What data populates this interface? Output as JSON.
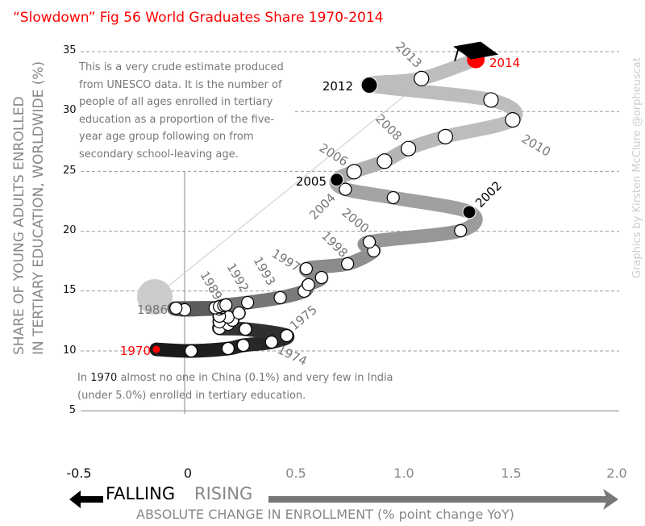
{
  "chart_data": {
    "type": "line",
    "title": "“Slowdown” Fig 56 World Graduates Share 1970-2014",
    "xlabel": "ABSOLUTE CHANGE IN ENROLLMENT (% point change YoY)",
    "ylabel": [
      "SHARE OF YOUNG ADULTS ENROLLED",
      "IN TERTIARY EDUCATION,  WORLDWIDE (%)"
    ],
    "xlim": [
      -0.5,
      2.0
    ],
    "ylim": [
      5,
      35
    ],
    "x_ticks": [
      "-0.5",
      "0",
      "0.5",
      "1.0",
      "1.5",
      "2.0"
    ],
    "y_ticks": [
      "35",
      "30",
      "25",
      "20",
      "15",
      "10",
      "5"
    ],
    "grid": "horizontal dashed",
    "direction_labels": {
      "falling": "FALLING",
      "rising": "RISING"
    },
    "points": [
      {
        "year": 1970,
        "x": -0.13,
        "y": 10.13
      },
      {
        "year": 1971,
        "x": 0.03,
        "y": 10.0
      },
      {
        "year": 1972,
        "x": 0.2,
        "y": 10.2
      },
      {
        "year": 1973,
        "x": 0.27,
        "y": 10.47
      },
      {
        "year": 1974,
        "x": 0.4,
        "y": 10.74
      },
      {
        "year": 1975,
        "x": 0.47,
        "y": 11.28
      },
      {
        "year": 1976,
        "x": 0.28,
        "y": 11.82
      },
      {
        "year": 1977,
        "x": 0.16,
        "y": 11.89
      },
      {
        "year": 1978,
        "x": 0.2,
        "y": 12.22
      },
      {
        "year": 1979,
        "x": 0.16,
        "y": 12.43
      },
      {
        "year": 1980,
        "x": 0.22,
        "y": 12.56
      },
      {
        "year": 1981,
        "x": 0.2,
        "y": 12.83
      },
      {
        "year": 1982,
        "x": 0.16,
        "y": 12.9
      },
      {
        "year": 1983,
        "x": 0.25,
        "y": 13.17
      },
      {
        "year": 1984,
        "x": 0.16,
        "y": 13.5
      },
      {
        "year": 1985,
        "x": 0.0,
        "y": 13.44
      },
      {
        "year": 1986,
        "x": -0.04,
        "y": 13.57
      },
      {
        "year": 1987,
        "x": 0.14,
        "y": 13.6
      },
      {
        "year": 1988,
        "x": 0.17,
        "y": 13.62
      },
      {
        "year": 1989,
        "x": 0.16,
        "y": 13.7
      },
      {
        "year": 1990,
        "x": 0.18,
        "y": 13.78
      },
      {
        "year": 1991,
        "x": 0.19,
        "y": 13.84
      },
      {
        "year": 1992,
        "x": 0.29,
        "y": 14.04
      },
      {
        "year": 1993,
        "x": 0.44,
        "y": 14.45
      },
      {
        "year": 1994,
        "x": 0.55,
        "y": 14.99
      },
      {
        "year": 1995,
        "x": 0.57,
        "y": 15.53
      },
      {
        "year": 1996,
        "x": 0.63,
        "y": 16.13
      },
      {
        "year": 1997,
        "x": 0.56,
        "y": 16.87
      },
      {
        "year": 1998,
        "x": 0.75,
        "y": 17.28
      },
      {
        "year": 1999,
        "x": 0.87,
        "y": 18.36
      },
      {
        "year": 2000,
        "x": 0.85,
        "y": 19.1
      },
      {
        "year": 2001,
        "x": 1.27,
        "y": 20.04
      },
      {
        "year": 2002,
        "x": 1.31,
        "y": 21.6
      },
      {
        "year": 2003,
        "x": 0.96,
        "y": 22.8
      },
      {
        "year": 2004,
        "x": 0.74,
        "y": 23.5
      },
      {
        "year": 2005,
        "x": 0.7,
        "y": 24.3
      },
      {
        "year": 2006,
        "x": 0.78,
        "y": 24.97
      },
      {
        "year": 2007,
        "x": 0.92,
        "y": 25.85
      },
      {
        "year": 2008,
        "x": 1.03,
        "y": 26.9
      },
      {
        "year": 2009,
        "x": 1.2,
        "y": 27.9
      },
      {
        "year": 2010,
        "x": 1.51,
        "y": 29.3
      },
      {
        "year": 2011,
        "x": 1.41,
        "y": 30.96
      },
      {
        "year": 2012,
        "x": 0.85,
        "y": 32.2
      },
      {
        "year": 2013,
        "x": 1.09,
        "y": 32.75
      },
      {
        "year": 2014,
        "x": 1.34,
        "y": 34.35
      }
    ],
    "year_labels": [
      "1970",
      "1974",
      "1975",
      "1986",
      "1989",
      "1992",
      "1993",
      "1997",
      "1998",
      "2000",
      "2002",
      "2004",
      "2005",
      "2006",
      "2008",
      "2010",
      "2012",
      "2013",
      "2014"
    ],
    "highlight_years": {
      "red": [
        1970,
        2014
      ],
      "black": [
        2002,
        2005,
        2012
      ]
    },
    "annotations": {
      "method_note": [
        "This is a very crude estimate produced",
        "from UNESCO data. It is the number of",
        "people of all ages enrolled in tertiary",
        "education as a proportion of the five-",
        "year age group following on from",
        "secondary school-leaving age."
      ],
      "note_1970": {
        "prefix": "In ",
        "year": "1970",
        "line1": " almost no one in China (0.1%) and very few in India",
        "line2": "(under 5.0%) enrolled in tertiary education."
      }
    },
    "colors": {
      "red": "#ff0000",
      "ribbon_start": "#1a1a1a",
      "ribbon_end": "#bdbdbd"
    }
  },
  "credit": "Graphics by Kirsten McClure @orpheuscat"
}
